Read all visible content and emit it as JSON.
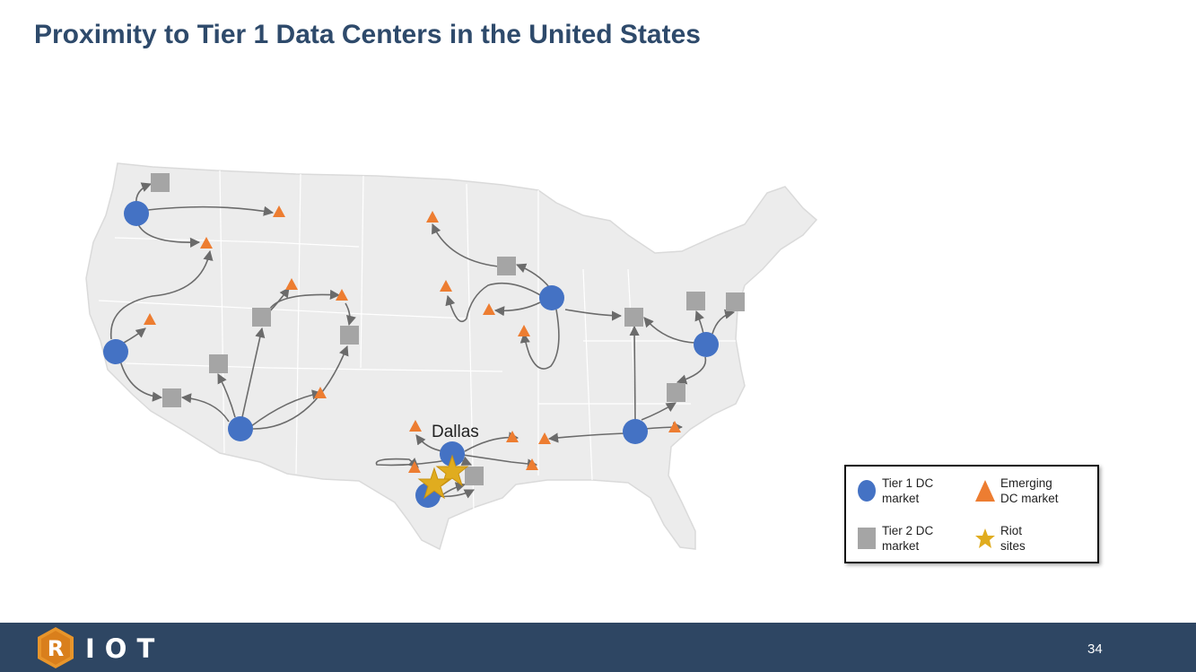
{
  "slide": {
    "title": "Proximity to Tier 1 Data Centers in the United States",
    "page_number": "34"
  },
  "map": {
    "city_label": "Dallas",
    "colors": {
      "tier1": "#4472c4",
      "tier2": "#a5a5a5",
      "emerging": "#ed7d31",
      "riot": "#e0ac1f",
      "arrow": "#6b6b6b",
      "land": "#ececec"
    }
  },
  "legend": {
    "tier1": "Tier 1 DC\nmarket",
    "emerging": "Emerging\nDC market",
    "tier2": "Tier 2 DC\nmarket",
    "riot": "Riot\nsites"
  },
  "footer": {
    "logo_letter": "R",
    "logo_text": "IOT"
  }
}
